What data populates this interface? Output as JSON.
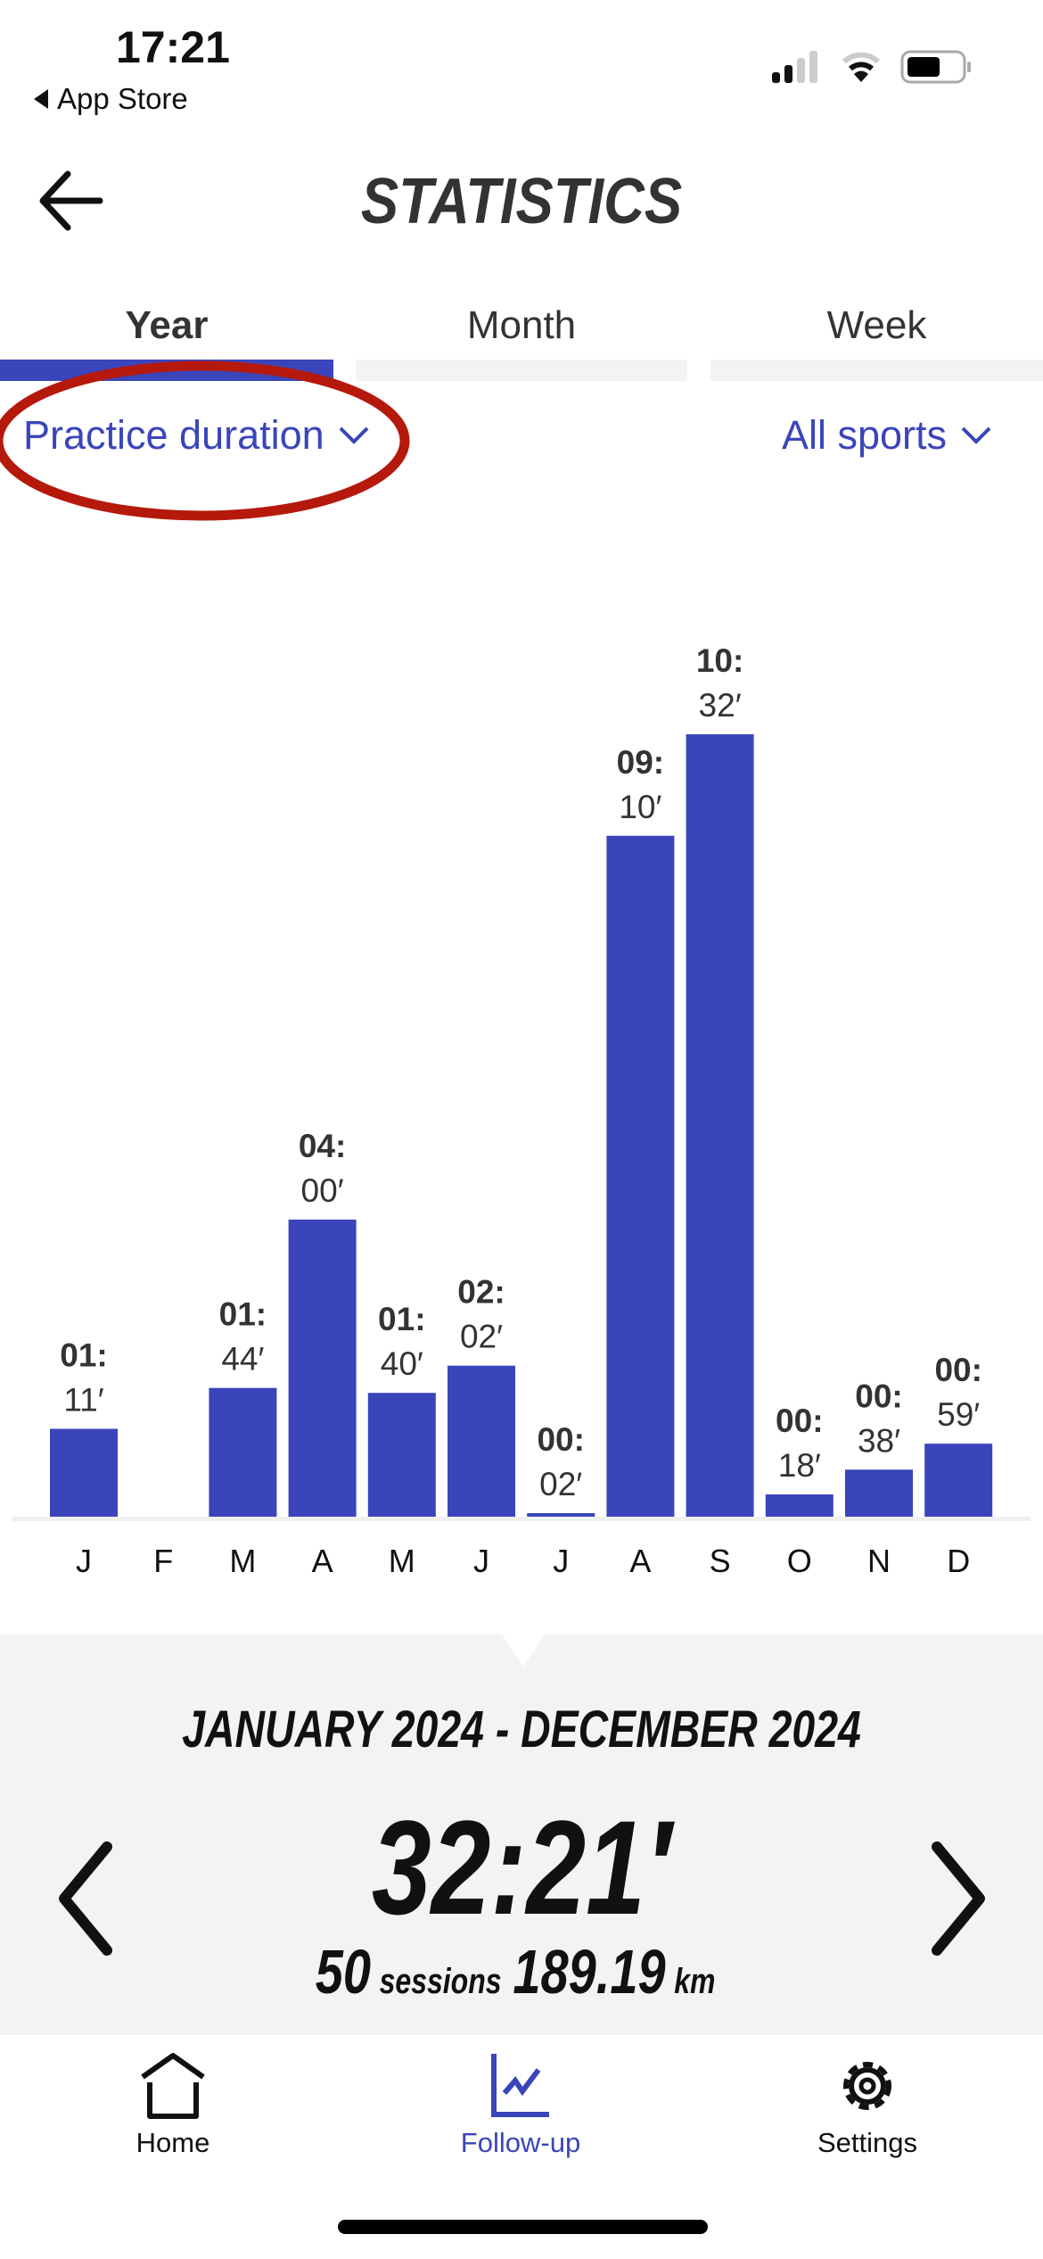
{
  "status_bar": {
    "time": "17:21",
    "back_app": "App Store"
  },
  "header": {
    "title": "STATISTICS"
  },
  "tabs": [
    {
      "label": "Year",
      "active": true
    },
    {
      "label": "Month",
      "active": false
    },
    {
      "label": "Week",
      "active": false
    }
  ],
  "filters": {
    "metric": "Practice duration",
    "sport": "All sports"
  },
  "colors": {
    "accent": "#3a45bb",
    "annotation": "#b5190c",
    "panel": "#f3f3f3"
  },
  "chart_data": {
    "type": "bar",
    "categories": [
      "J",
      "F",
      "M",
      "A",
      "M",
      "J",
      "J",
      "A",
      "S",
      "O",
      "N",
      "D"
    ],
    "values_minutes": [
      71,
      0,
      104,
      240,
      100,
      122,
      2,
      550,
      632,
      18,
      38,
      59
    ],
    "labels_hours": [
      "01:",
      "",
      "01:",
      "04:",
      "01:",
      "02:",
      "00:",
      "09:",
      "10:",
      "00:",
      "00:",
      "00:"
    ],
    "labels_minutes": [
      "11′",
      "",
      "44′",
      "00′",
      "40′",
      "02′",
      "02′",
      "10′",
      "32′",
      "18′",
      "38′",
      "59′"
    ],
    "grid": false
  },
  "summary": {
    "range": "JANUARY 2024 - DECEMBER 2024",
    "total": "32:21′",
    "sessions": "50",
    "sessions_label": "sessions",
    "distance": "189.19",
    "distance_unit": "km"
  },
  "bottom_nav": [
    {
      "label": "Home",
      "icon": "home-icon",
      "active": false
    },
    {
      "label": "Follow-up",
      "icon": "chart-icon",
      "active": true
    },
    {
      "label": "Settings",
      "icon": "gear-icon",
      "active": false
    }
  ]
}
